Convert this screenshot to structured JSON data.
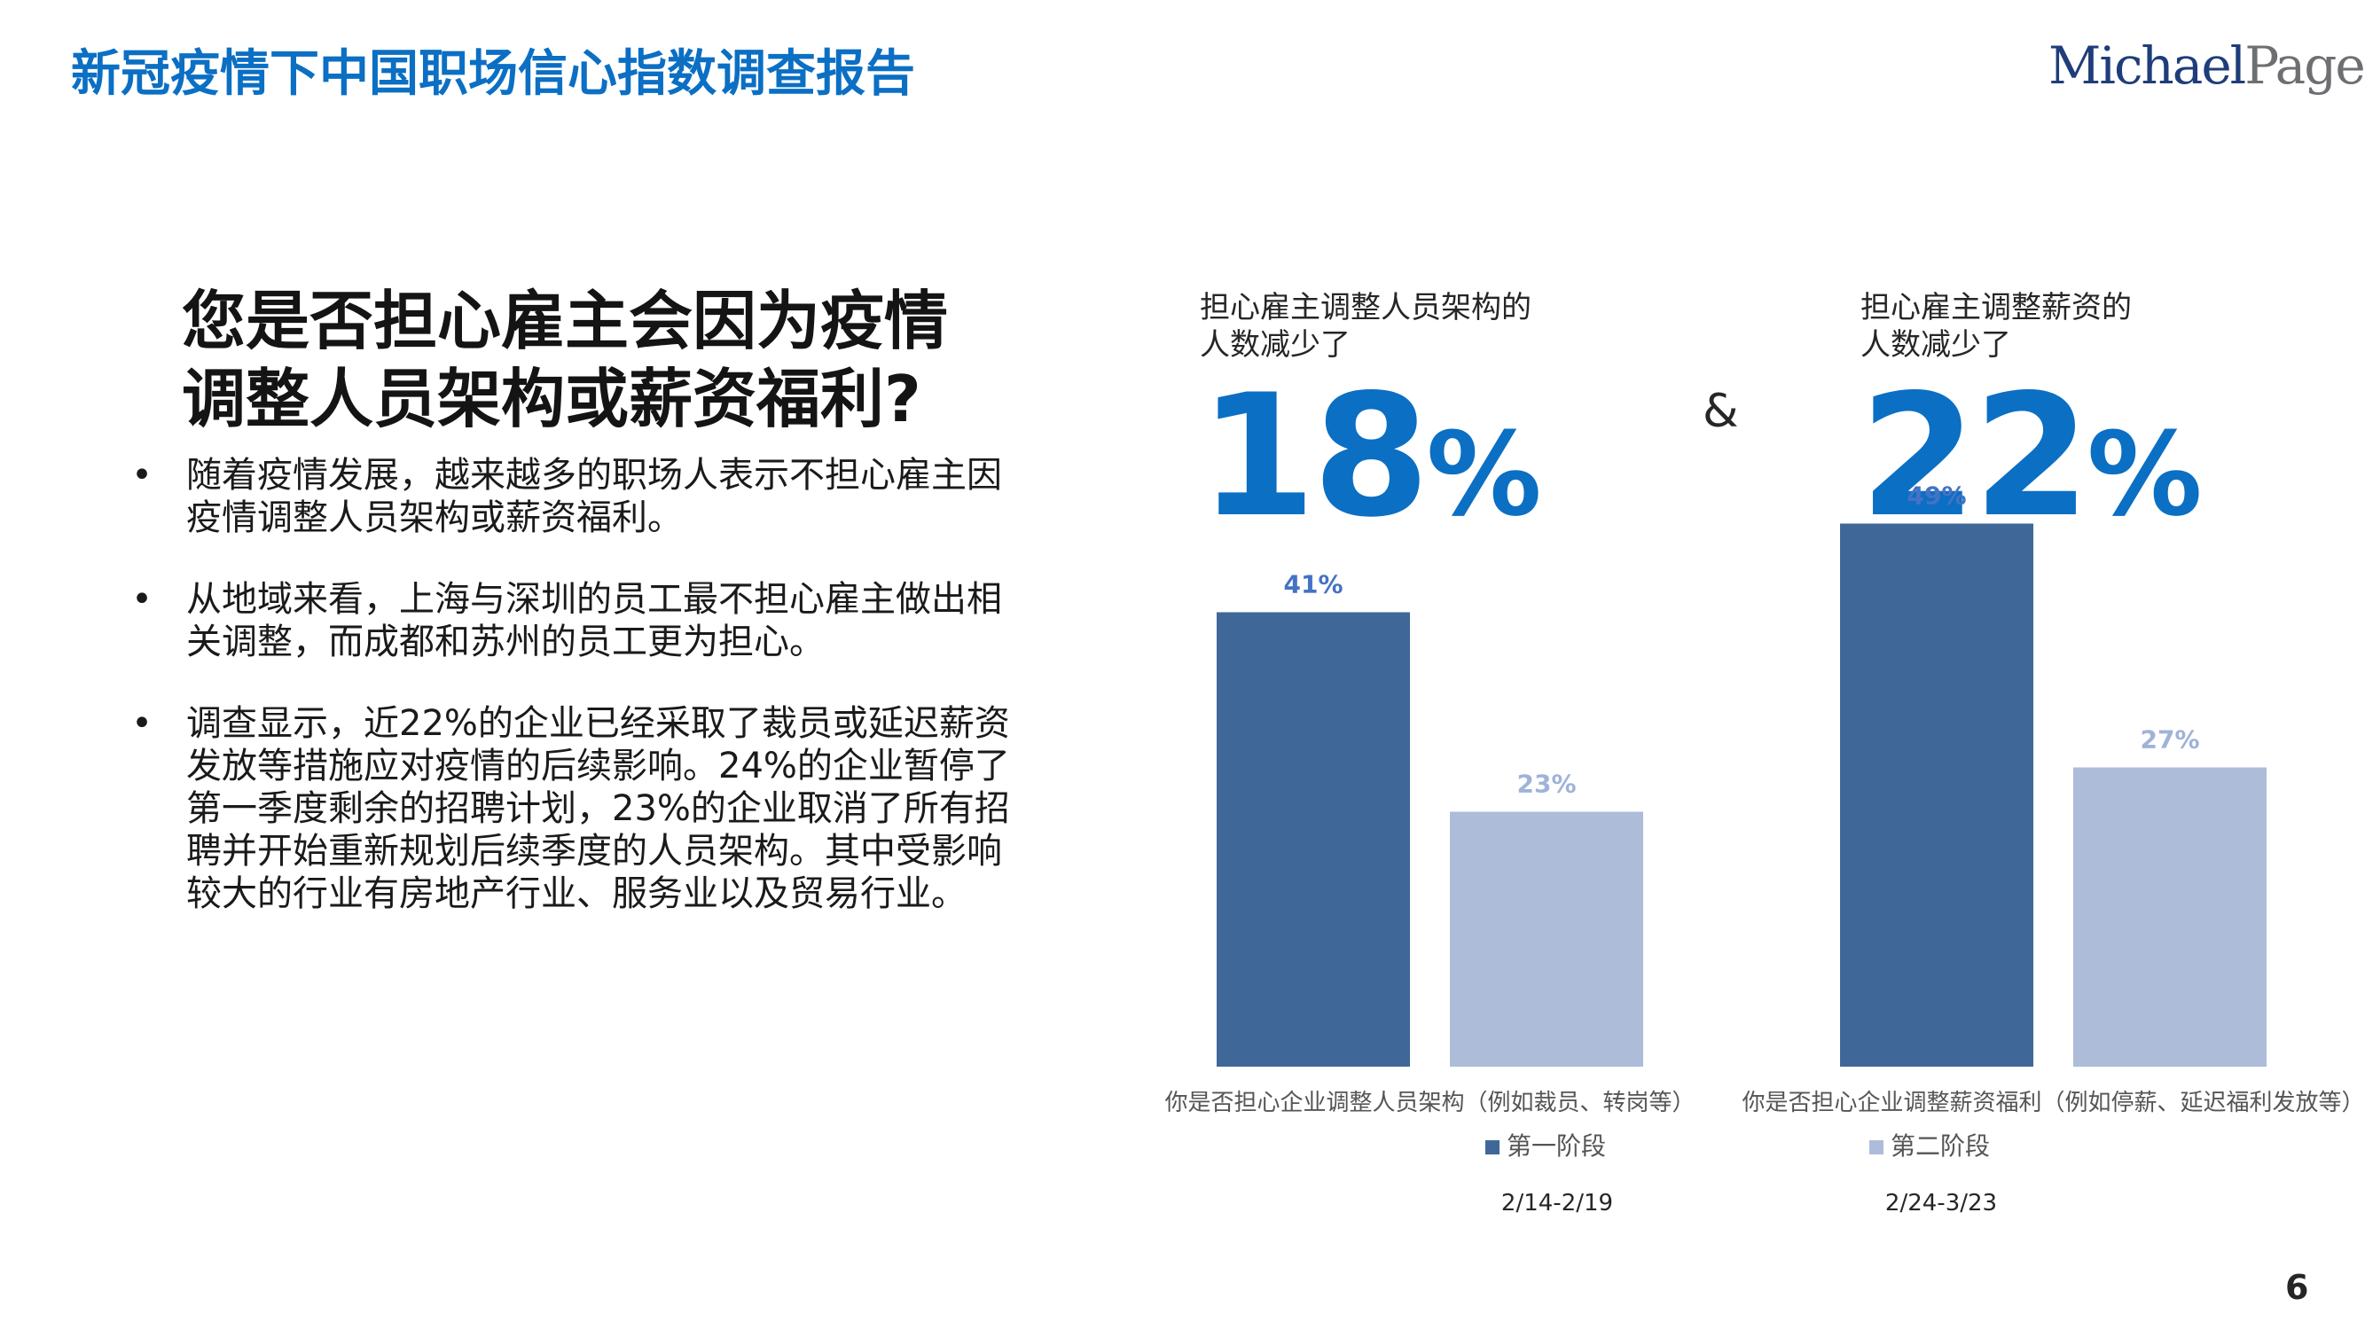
{
  "header": {
    "title": "新冠疫情下中国职场信心指数调查报告",
    "logo_main": "Michael",
    "logo_sub": "Page"
  },
  "left": {
    "question_lines": [
      "您是否担心雇主会因为疫情",
      "调整人员架构或薪资福利?"
    ],
    "bullets": [
      [
        "随着疫情发展，越来越多的职场人表示不担心雇主因",
        "疫情调整人员架构或薪资福利。"
      ],
      [
        "从地域来看，上海与深圳的员工最不担心雇主做出相",
        "关调整，而成都和苏州的员工更为担心。"
      ],
      [
        "调查显示，近22%的企业已经采取了裁员或延迟薪资",
        "发放等措施应对疫情的后续影响。24%的企业暂停了",
        "第一季度剩余的招聘计划，23%的企业取消了所有招",
        "聘并开始重新规划后续季度的人员架构。其中受影响",
        "较大的行业有房地产行业、服务业以及贸易行业。"
      ]
    ],
    "bullet_symbol": "•"
  },
  "kpis": [
    {
      "label_lines": [
        "担心雇主调整人员架构的",
        "人数减少了"
      ],
      "value": "18",
      "unit": "%"
    },
    {
      "label_lines": [
        "担心雇主调整薪资的",
        "人数减少了"
      ],
      "value": "22",
      "unit": "%"
    }
  ],
  "connector": "&",
  "chart_data": {
    "type": "bar",
    "categories": [
      "你是否担心企业调整人员架构（例如裁员、转岗等）",
      "你是否担心企业调整薪资福利（例如停薪、延迟福利发放等）"
    ],
    "series": [
      {
        "name": "第一阶段",
        "period": "2/14-2/19",
        "values": [
          41,
          49
        ],
        "labels": [
          "41%",
          "49%"
        ],
        "color": "#3f6899",
        "label_color": "#4472c4"
      },
      {
        "name": "第二阶段",
        "period": "2/24-3/23",
        "values": [
          23,
          27
        ],
        "labels": [
          "23%",
          "27%"
        ],
        "color": "#adbcd9",
        "label_color": "#9fb3d9"
      }
    ],
    "ylim": [
      0,
      50
    ],
    "legend": "bottom"
  },
  "page_number": "6"
}
